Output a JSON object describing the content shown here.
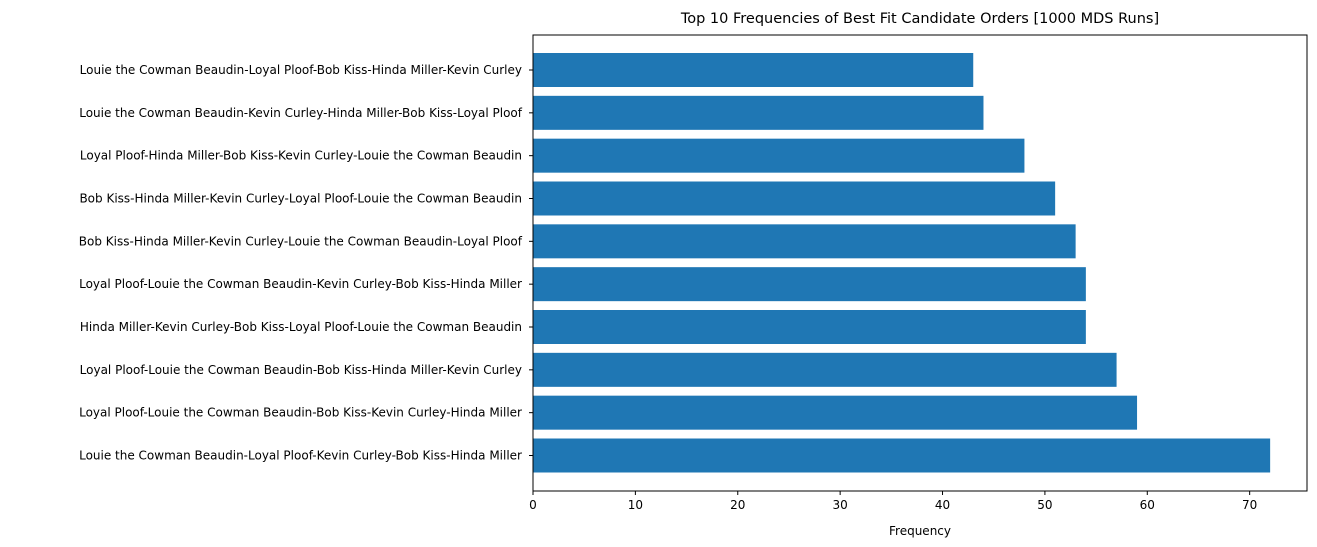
{
  "chart_data": {
    "type": "bar",
    "orientation": "horizontal",
    "title": "Top 10 Frequencies of Best Fit Candidate Orders [1000 MDS Runs]",
    "xlabel": "Frequency",
    "ylabel": "",
    "xlim": [
      0,
      75.6
    ],
    "xticks": [
      0,
      10,
      20,
      30,
      40,
      50,
      60,
      70
    ],
    "grid": false,
    "bar_color": "#1f77b4",
    "categories": [
      "Louie the Cowman Beaudin-Loyal Ploof-Kevin Curley-Bob Kiss-Hinda Miller",
      "Loyal Ploof-Louie the Cowman Beaudin-Bob Kiss-Kevin Curley-Hinda Miller",
      "Loyal Ploof-Louie the Cowman Beaudin-Bob Kiss-Hinda Miller-Kevin Curley",
      "Hinda Miller-Kevin Curley-Bob Kiss-Loyal Ploof-Louie the Cowman Beaudin",
      "Loyal Ploof-Louie the Cowman Beaudin-Kevin Curley-Bob Kiss-Hinda Miller",
      "Bob Kiss-Hinda Miller-Kevin Curley-Louie the Cowman Beaudin-Loyal Ploof",
      "Bob Kiss-Hinda Miller-Kevin Curley-Loyal Ploof-Louie the Cowman Beaudin",
      "Loyal Ploof-Hinda Miller-Bob Kiss-Kevin Curley-Louie the Cowman Beaudin",
      "Louie the Cowman Beaudin-Kevin Curley-Hinda Miller-Bob Kiss-Loyal Ploof",
      "Louie the Cowman Beaudin-Loyal Ploof-Bob Kiss-Hinda Miller-Kevin Curley"
    ],
    "values": [
      72,
      59,
      57,
      54,
      54,
      53,
      51,
      48,
      44,
      43
    ]
  }
}
